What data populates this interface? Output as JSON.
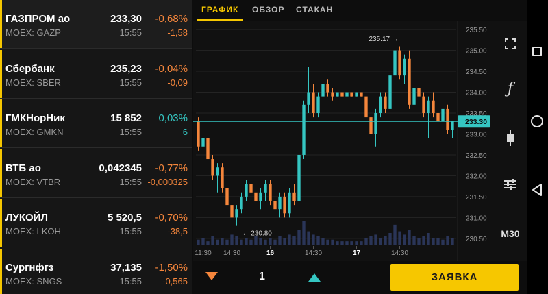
{
  "watchlist": [
    {
      "name": "ГАЗПРОМ ао",
      "exchange": "MOEX: GAZP",
      "price": "233,30",
      "time": "15:55",
      "change_pct": "-0,68%",
      "change_abs": "-1,58",
      "direction": "down",
      "active": true
    },
    {
      "name": "Сбербанк",
      "exchange": "MOEX: SBER",
      "price": "235,23",
      "time": "15:55",
      "change_pct": "-0,04%",
      "change_abs": "-0,09",
      "direction": "down",
      "active": false
    },
    {
      "name": "ГМКНорНик",
      "exchange": "MOEX: GMKN",
      "price": "15 852",
      "time": "15:55",
      "change_pct": "0,03%",
      "change_abs": "6",
      "direction": "up",
      "active": false
    },
    {
      "name": "ВТБ ао",
      "exchange": "MOEX: VTBR",
      "price": "0,042345",
      "time": "15:55",
      "change_pct": "-0,77%",
      "change_abs": "-0,000325",
      "direction": "down",
      "active": false
    },
    {
      "name": "ЛУКОЙЛ",
      "exchange": "MOEX: LKOH",
      "price": "5 520,5",
      "time": "15:55",
      "change_pct": "-0,70%",
      "change_abs": "-38,5",
      "direction": "down",
      "active": false
    },
    {
      "name": "Сургнфгз",
      "exchange": "MOEX: SNGS",
      "price": "37,135",
      "time": "15:55",
      "change_pct": "-1,50%",
      "change_abs": "-0,565",
      "direction": "down",
      "active": false
    }
  ],
  "tabs": [
    {
      "label": "ГРАФИК",
      "active": true
    },
    {
      "label": "ОБЗОР",
      "active": false
    },
    {
      "label": "СТАКАН",
      "active": false
    }
  ],
  "chart": {
    "current_price_label": "233.30",
    "high_annotation": "235.17 →",
    "low_annotation": "← 230.80",
    "y_ticks": [
      "235.50",
      "235.00",
      "234.50",
      "234.00",
      "233.50",
      "233.00",
      "232.50",
      "232.00",
      "231.50",
      "231.00",
      "230.50"
    ],
    "x_ticks": [
      "11:30",
      "14:30",
      "16",
      "14:30",
      "17",
      "14:30"
    ],
    "colors": {
      "up": "#35c6c2",
      "down": "#f5863c",
      "volume": "#2a3558",
      "price_line": "#35c6c2"
    }
  },
  "chart_data": {
    "type": "candlestick",
    "timeframe": "M30",
    "current_price": 233.3,
    "high": 235.17,
    "low": 230.8,
    "ylim": [
      230.35,
      235.6
    ],
    "candles": [
      [
        233.3,
        233.4,
        232.6,
        232.7
      ],
      [
        232.7,
        233.0,
        232.4,
        232.9
      ],
      [
        232.9,
        233.0,
        232.3,
        232.4
      ],
      [
        232.4,
        232.5,
        231.9,
        232.0
      ],
      [
        232.0,
        232.3,
        231.6,
        232.2
      ],
      [
        232.2,
        232.3,
        231.6,
        231.7
      ],
      [
        231.7,
        231.8,
        231.2,
        231.3
      ],
      [
        231.3,
        231.4,
        230.9,
        231.0
      ],
      [
        231.0,
        231.3,
        230.8,
        231.2
      ],
      [
        231.2,
        231.6,
        231.1,
        231.5
      ],
      [
        231.5,
        231.9,
        231.4,
        231.8
      ],
      [
        231.8,
        232.0,
        231.5,
        231.6
      ],
      [
        231.6,
        231.8,
        231.3,
        231.4
      ],
      [
        231.4,
        231.7,
        231.2,
        231.6
      ],
      [
        231.6,
        231.9,
        231.4,
        231.8
      ],
      [
        231.8,
        231.9,
        231.3,
        231.4
      ],
      [
        231.4,
        231.5,
        231.1,
        231.2
      ],
      [
        231.2,
        231.6,
        231.0,
        231.5
      ],
      [
        231.5,
        231.6,
        231.0,
        231.1
      ],
      [
        231.1,
        231.7,
        231.0,
        231.6
      ],
      [
        231.6,
        231.8,
        231.3,
        231.4
      ],
      [
        231.4,
        232.6,
        231.4,
        232.5
      ],
      [
        232.5,
        233.8,
        232.4,
        233.7
      ],
      [
        233.7,
        234.6,
        233.5,
        234.0
      ],
      [
        234.0,
        234.2,
        233.4,
        233.5
      ],
      [
        233.5,
        234.0,
        233.4,
        233.9
      ],
      [
        233.9,
        234.3,
        233.8,
        234.2
      ],
      [
        234.2,
        234.3,
        233.9,
        234.0
      ],
      [
        234.0,
        234.1,
        233.8,
        233.9
      ],
      [
        233.9,
        234.0,
        233.9,
        234.0
      ],
      [
        234.0,
        234.0,
        233.9,
        233.9
      ],
      [
        233.9,
        234.0,
        233.9,
        234.0
      ],
      [
        234.0,
        234.0,
        233.9,
        233.9
      ],
      [
        233.9,
        234.0,
        233.9,
        234.0
      ],
      [
        234.0,
        234.0,
        233.9,
        233.9
      ],
      [
        233.9,
        234.0,
        233.3,
        233.4
      ],
      [
        233.4,
        233.5,
        232.9,
        233.0
      ],
      [
        233.0,
        233.6,
        232.7,
        233.5
      ],
      [
        233.5,
        234.0,
        233.4,
        233.9
      ],
      [
        233.9,
        234.0,
        233.5,
        233.6
      ],
      [
        233.6,
        234.5,
        233.5,
        234.4
      ],
      [
        234.4,
        235.17,
        234.3,
        235.0
      ],
      [
        235.0,
        235.1,
        234.3,
        234.4
      ],
      [
        234.4,
        234.9,
        234.2,
        234.8
      ],
      [
        234.8,
        235.0,
        233.6,
        233.7
      ],
      [
        233.7,
        234.2,
        233.5,
        234.1
      ],
      [
        234.1,
        234.2,
        233.8,
        233.9
      ],
      [
        233.9,
        234.0,
        233.4,
        233.5
      ],
      [
        233.5,
        233.9,
        232.9,
        233.8
      ],
      [
        233.8,
        234.0,
        233.4,
        233.5
      ],
      [
        233.5,
        233.7,
        233.2,
        233.3
      ],
      [
        233.3,
        233.7,
        233.2,
        233.6
      ],
      [
        233.6,
        233.7,
        233.0,
        233.1
      ],
      [
        233.1,
        233.3,
        232.9,
        233.3
      ]
    ],
    "volumes": [
      3,
      4,
      2,
      5,
      3,
      4,
      3,
      6,
      5,
      3,
      4,
      3,
      5,
      4,
      3,
      4,
      3,
      5,
      4,
      6,
      5,
      9,
      14,
      8,
      6,
      5,
      4,
      3,
      3,
      2,
      2,
      2,
      2,
      2,
      2,
      4,
      5,
      6,
      4,
      5,
      7,
      12,
      8,
      6,
      9,
      5,
      4,
      5,
      7,
      4,
      4,
      3,
      5,
      4
    ]
  },
  "tools": [
    {
      "name": "fullscreen-icon",
      "glyph": "⛶"
    },
    {
      "name": "indicator-icon",
      "glyph": "ƒ"
    },
    {
      "name": "candle-type-icon",
      "glyph": ""
    },
    {
      "name": "settings-sliders-icon",
      "glyph": ""
    }
  ],
  "timeframe": "M30",
  "order": {
    "quantity": "1",
    "button_label": "ЗАЯВКА"
  }
}
